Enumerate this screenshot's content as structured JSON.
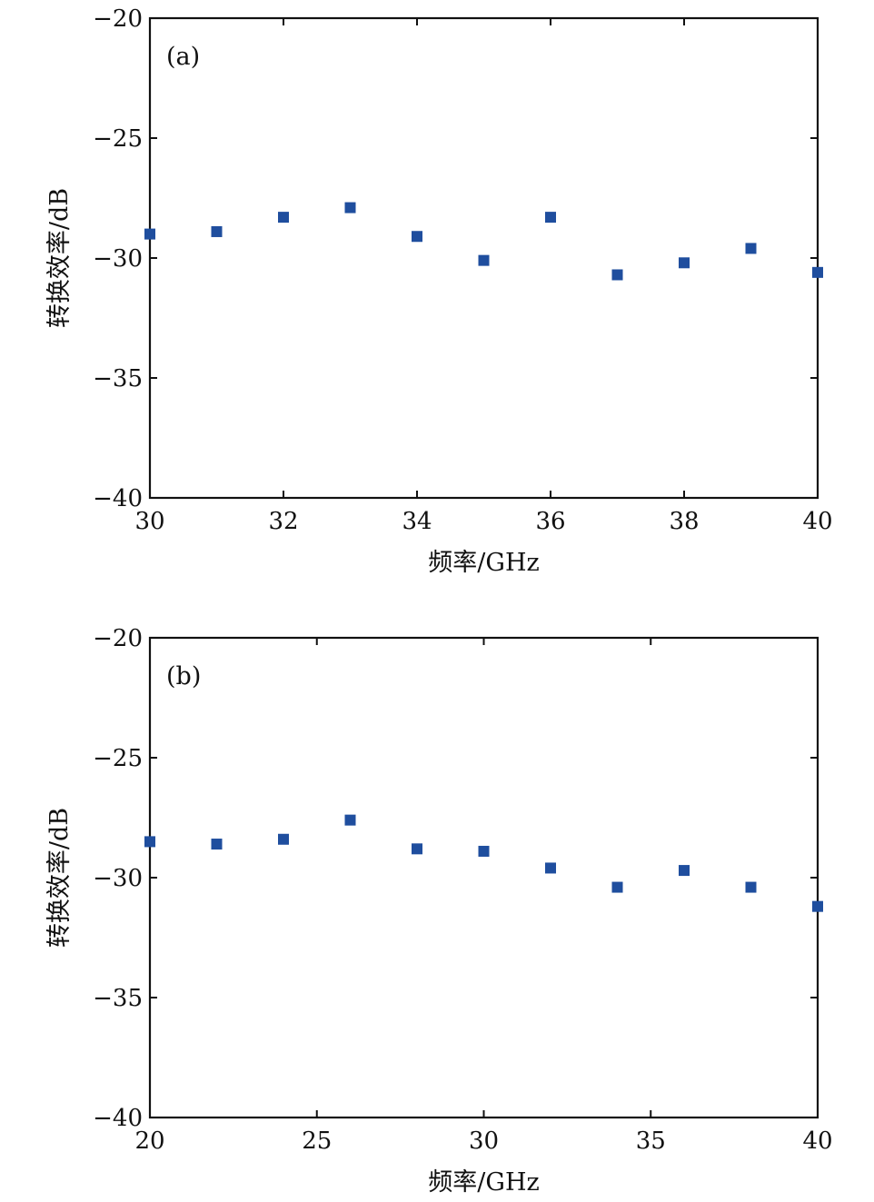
{
  "chart_data": [
    {
      "type": "scatter",
      "panel_label": "(a)",
      "xlabel": "频率/GHz",
      "ylabel": "转换效率/dB",
      "xlim": [
        30,
        40
      ],
      "ylim": [
        -40,
        -20
      ],
      "x_ticks": [
        30,
        32,
        34,
        36,
        38,
        40
      ],
      "y_ticks": [
        -20,
        -25,
        -30,
        -35,
        -40
      ],
      "x_tick_labels": [
        "30",
        "32",
        "34",
        "36",
        "38",
        "40"
      ],
      "y_tick_labels": [
        "−20",
        "−25",
        "−30",
        "−35",
        "−40"
      ],
      "grid": false,
      "marker_color": "#1f4e9e",
      "series": [
        {
          "x": [
            30,
            31,
            32,
            33,
            34,
            35,
            36,
            37,
            38,
            39,
            40
          ],
          "y": [
            -29.0,
            -28.9,
            -28.3,
            -27.9,
            -29.1,
            -30.1,
            -28.3,
            -30.7,
            -30.2,
            -29.6,
            -30.6
          ]
        }
      ]
    },
    {
      "type": "scatter",
      "panel_label": "(b)",
      "xlabel": "频率/GHz",
      "ylabel": "转换效率/dB",
      "xlim": [
        20,
        40
      ],
      "ylim": [
        -40,
        -20
      ],
      "x_ticks": [
        20,
        25,
        30,
        35,
        40
      ],
      "y_ticks": [
        -20,
        -25,
        -30,
        -35,
        -40
      ],
      "x_tick_labels": [
        "20",
        "25",
        "30",
        "35",
        "40"
      ],
      "y_tick_labels": [
        "−20",
        "−25",
        "−30",
        "−35",
        "−40"
      ],
      "grid": false,
      "marker_color": "#1f4e9e",
      "series": [
        {
          "x": [
            20,
            22,
            24,
            26,
            28,
            30,
            32,
            34,
            36,
            38,
            40
          ],
          "y": [
            -28.5,
            -28.6,
            -28.4,
            -27.6,
            -28.8,
            -28.9,
            -29.6,
            -30.4,
            -29.7,
            -30.4,
            -31.2
          ]
        }
      ]
    }
  ]
}
